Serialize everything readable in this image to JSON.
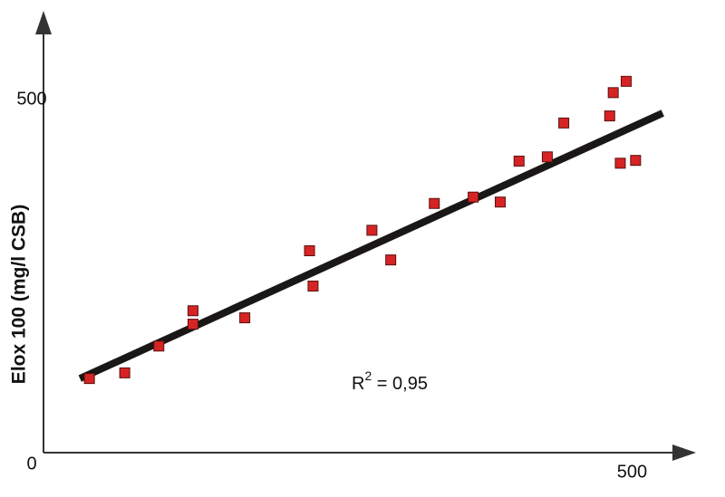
{
  "chart_data": {
    "type": "scatter",
    "y_label": "Elox 100  (mg/l CSB)",
    "x": [
      39,
      69,
      98,
      127,
      127,
      171,
      226,
      229,
      279,
      295,
      332,
      365,
      388,
      404,
      428,
      442,
      481,
      484,
      495,
      490,
      503
    ],
    "values": [
      105,
      113,
      151,
      201,
      182,
      191,
      286,
      236,
      315,
      273,
      353,
      362,
      355,
      413,
      419,
      467,
      477,
      510,
      526,
      410,
      414
    ],
    "color": "#d62424",
    "trendline": {
      "x": [
        31,
        526
      ],
      "y": [
        105,
        481
      ],
      "color": "#1a1717"
    },
    "annotation": {
      "base": "R",
      "sup": "2",
      "rest": " = 0,95"
    },
    "xlim": [
      0,
      552
    ],
    "ylim": [
      0,
      622
    ],
    "xticks": [
      500
    ],
    "yticks": [
      0,
      500
    ]
  }
}
